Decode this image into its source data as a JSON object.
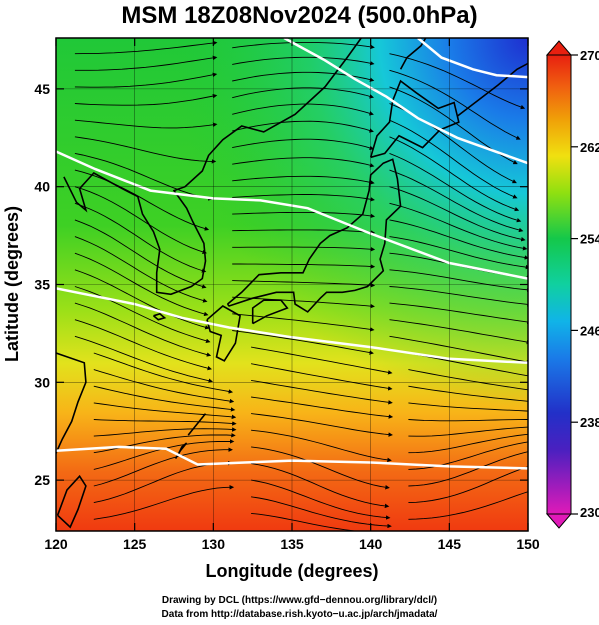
{
  "title": "MSM 18Z08Nov2024 (500.0hPa)",
  "chart_data": {
    "type": "map",
    "xlabel": "Longitude (degrees)",
    "ylabel": "Latitude  (degrees)",
    "xlim": [
      120,
      150
    ],
    "ylim": [
      22.4,
      47.6
    ],
    "xticks": [
      120,
      125,
      130,
      135,
      140,
      145,
      150
    ],
    "yticks": [
      25,
      30,
      35,
      40,
      45
    ],
    "colorbar": {
      "min": 230,
      "max": 270,
      "ticks": [
        230,
        238,
        246,
        254,
        262,
        270
      ],
      "colors": [
        "#e01ab8",
        "#2230c8",
        "#10b4e8",
        "#14c84a",
        "#90e010",
        "#f0c008",
        "#f07010",
        "#e82010"
      ]
    },
    "temperature_field": [
      {
        "lat": 47,
        "lon": 120,
        "value": 254.5
      },
      {
        "lat": 47,
        "lon": 140,
        "value": 252
      },
      {
        "lat": 47,
        "lon": 148,
        "value": 236
      },
      {
        "lat": 44,
        "lon": 149,
        "value": 246
      },
      {
        "lat": 40,
        "lon": 125,
        "value": 256
      },
      {
        "lat": 35,
        "lon": 125,
        "value": 260
      },
      {
        "lat": 30,
        "lon": 125,
        "value": 263
      },
      {
        "lat": 25,
        "lon": 125,
        "value": 267
      }
    ],
    "contours": [
      {
        "label": "",
        "points": [
          [
            120,
            41.8
          ],
          [
            122.5,
            40.9
          ],
          [
            126,
            39.8
          ],
          [
            130,
            39.4
          ],
          [
            133,
            39.3
          ],
          [
            136,
            38.9
          ],
          [
            140,
            37.6
          ],
          [
            145,
            36.1
          ],
          [
            150,
            35.3
          ]
        ]
      },
      {
        "label": "",
        "points": [
          [
            120,
            34.8
          ],
          [
            125,
            34.0
          ],
          [
            128,
            33.3
          ],
          [
            131,
            32.8
          ],
          [
            135,
            32.3
          ],
          [
            140,
            31.8
          ],
          [
            145,
            31.2
          ],
          [
            150,
            31.0
          ]
        ]
      },
      {
        "label": "",
        "points": [
          [
            120,
            26.5
          ],
          [
            124,
            26.7
          ],
          [
            127,
            26.6
          ],
          [
            129,
            25.8
          ],
          [
            132,
            25.9
          ],
          [
            135,
            26.0
          ],
          [
            140,
            25.9
          ],
          [
            145,
            25.7
          ],
          [
            150,
            25.6
          ]
        ]
      },
      {
        "label": "",
        "points": [
          [
            134.5,
            47.6
          ],
          [
            137,
            46.5
          ],
          [
            139,
            45.5
          ],
          [
            141,
            44.6
          ],
          [
            143,
            43.5
          ],
          [
            145.5,
            42.5
          ],
          [
            150,
            41.2
          ]
        ]
      },
      {
        "label": "",
        "points": [
          [
            143,
            47.6
          ],
          [
            144.5,
            46.6
          ],
          [
            146.5,
            46.0
          ],
          [
            148,
            45.7
          ],
          [
            150,
            45.6
          ]
        ]
      }
    ]
  },
  "credits": {
    "line1": "Drawing by DCL (https://www.gfd−dennou.org/library/dcl/)",
    "line2": "Data from http://database.rish.kyoto−u.ac.jp/arch/jmadata/"
  }
}
